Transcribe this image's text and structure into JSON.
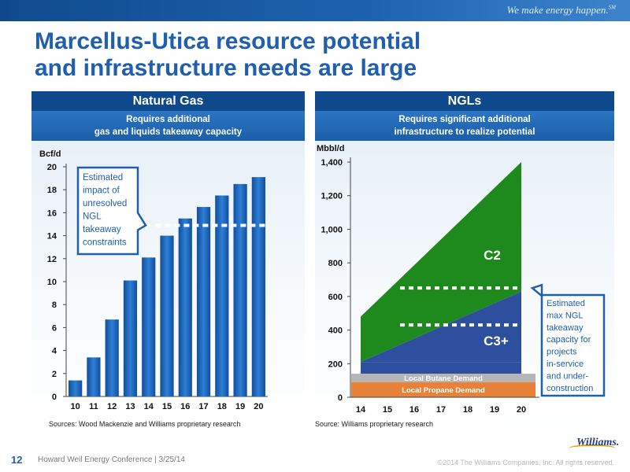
{
  "header": {
    "tagline": "We make energy happen.",
    "tagline_mark": "SM"
  },
  "title": {
    "line1": "Marcellus-Utica resource potential",
    "line2": "and infrastructure needs are large"
  },
  "left_panel": {
    "heading": "Natural Gas",
    "subheading_line1": "Requires additional",
    "subheading_line2": "gas and liquids takeaway capacity",
    "callout_lines": [
      "Estimated",
      "impact of",
      "unresolved",
      "NGL",
      "takeaway",
      "constraints"
    ],
    "source": "Sources: Wood Mackenzie and Williams proprietary research"
  },
  "right_panel": {
    "heading": "NGLs",
    "subheading_line1": "Requires significant additional",
    "subheading_line2": "infrastructure to realize potential",
    "callout_lines": [
      "Estimated",
      "max NGL",
      "takeaway",
      "capacity for",
      "projects",
      "in-service",
      "and under-",
      "construction"
    ],
    "source": "Source: Williams proprietary research"
  },
  "footer": {
    "page_number": "12",
    "event": "Howard Weil Energy Conference | 3/25/14",
    "copyright": "©2014 The Williams Companies, Inc. All rights reserved.",
    "logo_text": "Williams."
  },
  "colors": {
    "brand_blue": "#1f5fae",
    "dark_blue": "#0f4a8c",
    "bar_blue": "#1a5fb4",
    "c2_green": "#1e8a1e",
    "c3_blue": "#2d4f9e",
    "butane_gray": "#b5b5b5",
    "propane_orange": "#e8823a",
    "callout_border": "#1f5fae"
  },
  "chart_data": [
    {
      "type": "bar",
      "title": "Natural Gas",
      "ylabel": "Bcf/d",
      "categories": [
        "10",
        "11",
        "12",
        "13",
        "14",
        "15",
        "16",
        "17",
        "18",
        "19",
        "20"
      ],
      "values": [
        1.4,
        3.4,
        6.7,
        10.1,
        12.1,
        14.0,
        15.5,
        16.5,
        17.5,
        18.5,
        19.1
      ],
      "ylim": [
        0,
        20
      ],
      "yticks": [
        0,
        2,
        4,
        6,
        8,
        10,
        12,
        14,
        16,
        18,
        20
      ],
      "annotations": [
        {
          "type": "dashed-line",
          "y": 14.9,
          "from": "15",
          "to": "20",
          "label": "Estimated impact of unresolved NGL takeaway constraints"
        }
      ],
      "grid": false
    },
    {
      "type": "area",
      "title": "NGLs",
      "ylabel": "Mbbl/d",
      "x": [
        "14",
        "15",
        "16",
        "17",
        "18",
        "19",
        "20"
      ],
      "ylim": [
        0,
        1400
      ],
      "yticks": [
        0,
        200,
        400,
        600,
        800,
        1000,
        1200,
        1400
      ],
      "ytick_labels": [
        "0",
        "200",
        "400",
        "600",
        "800",
        "1,000",
        "1,200",
        "1,400"
      ],
      "series": [
        {
          "name": "Local Propane Demand",
          "type": "band",
          "bottom": 0,
          "top": 90
        },
        {
          "name": "Local Butane Demand",
          "type": "band",
          "bottom": 90,
          "top": 140
        },
        {
          "name": "C3+",
          "x_start": 14,
          "x_end": 20,
          "bottom": [
            210,
            210
          ],
          "top": [
            210,
            630
          ]
        },
        {
          "name": "C2",
          "x_start": 14,
          "x_end": 20,
          "bottom": [
            210,
            630
          ],
          "top": [
            480,
            1400
          ]
        }
      ],
      "annotations": [
        {
          "type": "dashed-line",
          "y": 650,
          "label": "Estimated max NGL takeaway capacity for projects in-service and under-construction"
        },
        {
          "type": "dashed-line",
          "y": 430
        }
      ],
      "grid": false
    }
  ]
}
